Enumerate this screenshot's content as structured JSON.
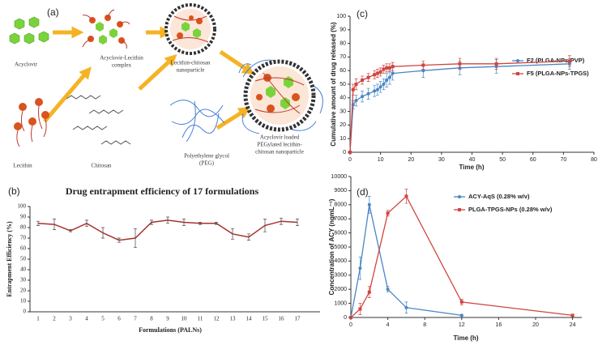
{
  "diagram": {
    "panel_label": "(a)",
    "labels": [
      {
        "lines": [
          "Acyclovir"
        ]
      },
      {
        "lines": [
          "Acyclovir-Lecithin",
          "complex"
        ]
      },
      {
        "lines": [
          "Lecithin-chitosan",
          "nanoparticle"
        ]
      },
      {
        "lines": [
          "Lecithin"
        ]
      },
      {
        "lines": [
          "Chitosan"
        ]
      },
      {
        "lines": [
          "Polyethylene glycol",
          "(PEG)"
        ]
      },
      {
        "lines": [
          "Acyclovir loaded",
          "PEGylated lecithin-",
          "chitosan nanoparticle"
        ]
      }
    ]
  },
  "chart_data": [
    {
      "type": "line",
      "panel_label": "(b)",
      "title": "Drug entrapment efficiency of 17 formulations",
      "x_label": "Formulations (PALNs)",
      "y_label": "Entrapment Efficiency (%)",
      "categories": [
        "1",
        "2",
        "3",
        "4",
        "5",
        "6",
        "7",
        "8",
        "9",
        "10",
        "11",
        "12",
        "13",
        "14",
        "15",
        "16",
        "17"
      ],
      "values": [
        84,
        83,
        77,
        84,
        75,
        68,
        70,
        85,
        87,
        85,
        84,
        84,
        74,
        71,
        82,
        86,
        85
      ],
      "errors": [
        2,
        5,
        1,
        3,
        5,
        2,
        9,
        2,
        3,
        3,
        1,
        1,
        5,
        3,
        6,
        3,
        3
      ],
      "color": "#a8322d",
      "ylim": [
        0,
        100
      ],
      "yticks": [
        0,
        10,
        20,
        30,
        40,
        50,
        60,
        70,
        80,
        90,
        100
      ]
    },
    {
      "type": "line",
      "panel_label": "(c)",
      "x_label": "Time (h)",
      "y_label": "Cumulative amount of drug released (%)",
      "x": [
        0,
        1,
        2,
        4,
        6,
        8,
        9,
        10,
        11,
        12,
        13,
        14,
        24,
        36,
        48,
        72
      ],
      "series": [
        {
          "name": "F2 (PLGA-NPs-PVP)",
          "color": "#4a86c5",
          "values": [
            0,
            35,
            38,
            41,
            43,
            45,
            46,
            48,
            50,
            53,
            55,
            58,
            60,
            62,
            63,
            65
          ],
          "errors": [
            0,
            3,
            4,
            4,
            4,
            4,
            4,
            4,
            4,
            5,
            5,
            5,
            5,
            5,
            5,
            4
          ]
        },
        {
          "name": "F5 (PLGA-NPs-TPGS)",
          "color": "#d0453f",
          "values": [
            0,
            46,
            50,
            53,
            55,
            57,
            58,
            59,
            61,
            62,
            62,
            63,
            64,
            65,
            65,
            67
          ],
          "errors": [
            0,
            4,
            4,
            3,
            3,
            3,
            3,
            3,
            3,
            3,
            3,
            3,
            3,
            4,
            4,
            4
          ]
        }
      ],
      "xlim": [
        0,
        80
      ],
      "xticks": [
        0,
        10,
        20,
        30,
        40,
        50,
        60,
        70,
        80
      ],
      "ylim": [
        0,
        100
      ],
      "yticks": [
        0,
        10,
        20,
        30,
        40,
        50,
        60,
        70,
        80,
        90,
        100
      ],
      "legend": "right"
    },
    {
      "type": "line",
      "panel_label": "(d)",
      "x_label": "Time (h)",
      "y_label": "Concentration of ACY (ngmL⁻¹)",
      "x": [
        0,
        1,
        2,
        4,
        6,
        12,
        24
      ],
      "series": [
        {
          "name": "ACY-AqS (0.28% w/v)",
          "color": "#4a86c5",
          "values": [
            0,
            3500,
            8000,
            2000,
            700,
            150,
            null
          ],
          "errors": [
            0,
            800,
            600,
            200,
            400,
            50,
            null
          ]
        },
        {
          "name": "PLGA-TPGS-NPs (0.28% w/v)",
          "color": "#d0453f",
          "values": [
            0,
            600,
            1800,
            7400,
            8600,
            1100,
            150
          ],
          "errors": [
            0,
            400,
            400,
            200,
            500,
            200,
            50
          ]
        }
      ],
      "xlim": [
        0,
        25
      ],
      "xticks": [
        0,
        4,
        8,
        12,
        16,
        20,
        24
      ],
      "ylim": [
        0,
        10000
      ],
      "yticks": [
        0,
        1000,
        2000,
        3000,
        4000,
        5000,
        6000,
        7000,
        8000,
        9000,
        10000
      ],
      "legend": "right"
    }
  ]
}
